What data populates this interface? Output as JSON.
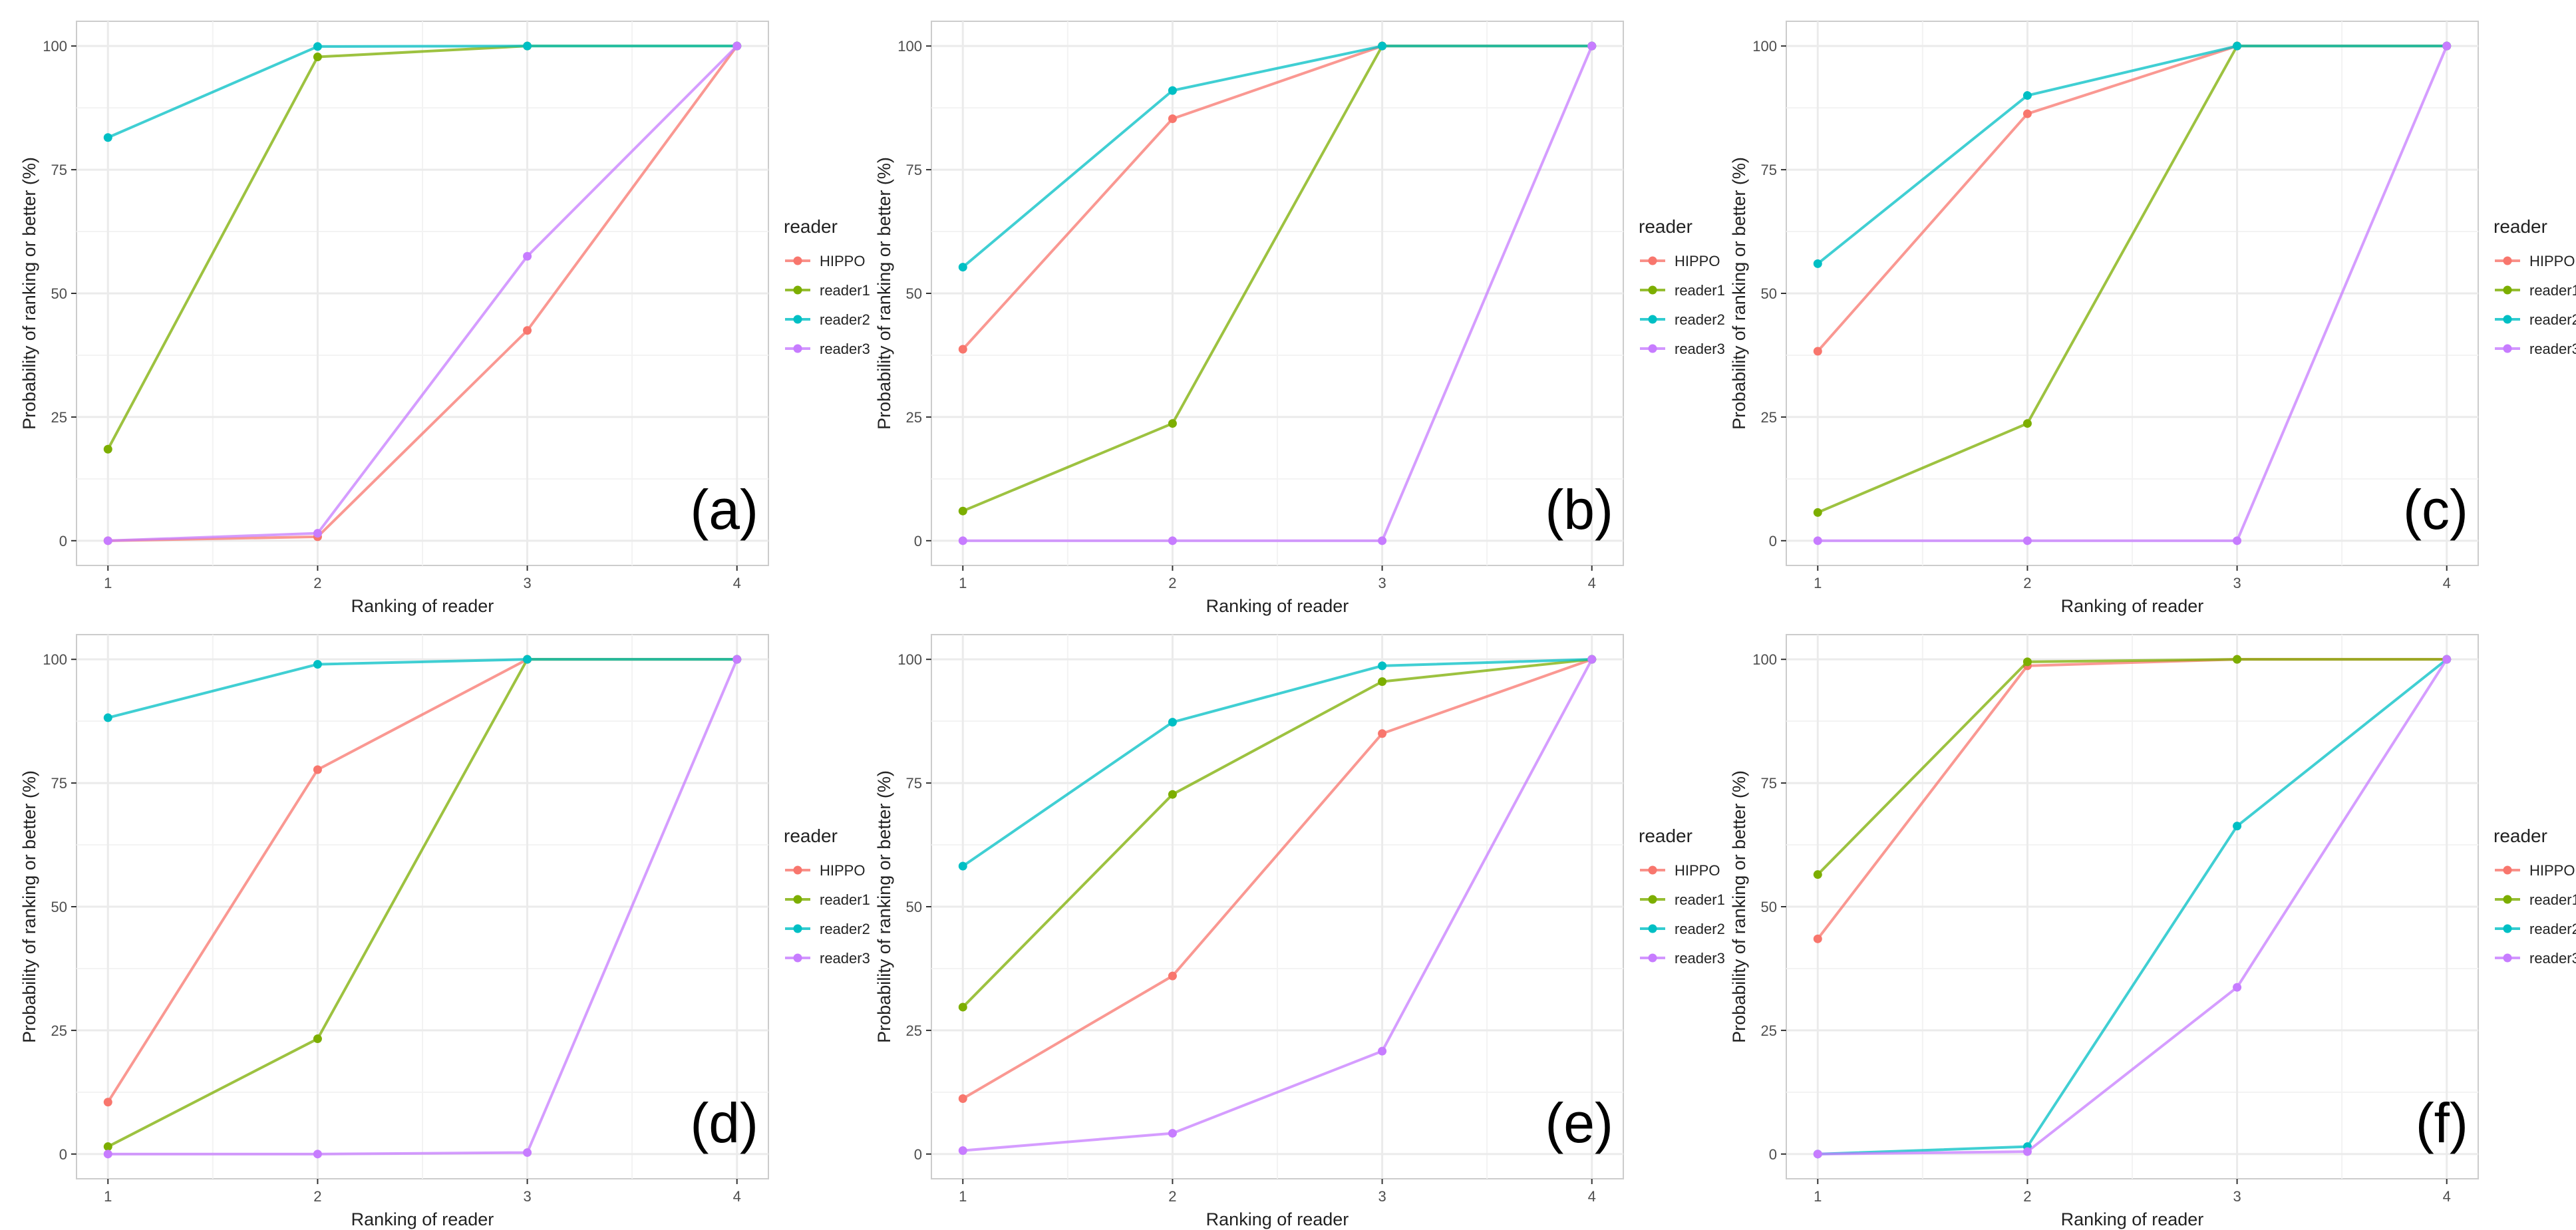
{
  "figure": {
    "legend_title": "reader",
    "colors": {
      "HIPPO": "#F8766D",
      "reader1": "#7CAE00",
      "reader2": "#00BFC4",
      "reader3": "#C77CFF",
      "grid": "#EBEBEB",
      "panel_border": "#CCCCCC",
      "text": "#222222",
      "tick_text": "#4D4D4D"
    }
  },
  "chart_data": [
    {
      "panel_label": "(a)",
      "type": "line",
      "xlabel": "Ranking of reader",
      "ylabel": "Probability of ranking or better (%)",
      "x": [
        1,
        2,
        3,
        4
      ],
      "xlim": [
        1,
        4
      ],
      "ylim": [
        0,
        100
      ],
      "x_ticks": [
        "1",
        "2",
        "3",
        "4"
      ],
      "y_ticks": [
        "0",
        "25",
        "50",
        "75",
        "100"
      ],
      "series": [
        {
          "name": "HIPPO",
          "values": [
            0,
            0.8,
            42.5,
            100
          ]
        },
        {
          "name": "reader1",
          "values": [
            18.5,
            97.8,
            100,
            100
          ]
        },
        {
          "name": "reader2",
          "values": [
            81.5,
            99.9,
            100,
            100
          ]
        },
        {
          "name": "reader3",
          "values": [
            0,
            1.5,
            57.5,
            100
          ]
        }
      ]
    },
    {
      "panel_label": "(b)",
      "type": "line",
      "xlabel": "Ranking of reader",
      "ylabel": "Probability of ranking or better (%)",
      "x": [
        1,
        2,
        3,
        4
      ],
      "xlim": [
        1,
        4
      ],
      "ylim": [
        0,
        100
      ],
      "x_ticks": [
        "1",
        "2",
        "3",
        "4"
      ],
      "y_ticks": [
        "0",
        "25",
        "50",
        "75",
        "100"
      ],
      "series": [
        {
          "name": "HIPPO",
          "values": [
            38.7,
            85.3,
            100,
            100
          ]
        },
        {
          "name": "reader1",
          "values": [
            6,
            23.7,
            100,
            100
          ]
        },
        {
          "name": "reader2",
          "values": [
            55.3,
            91,
            100,
            100
          ]
        },
        {
          "name": "reader3",
          "values": [
            0,
            0,
            0,
            100
          ]
        }
      ]
    },
    {
      "panel_label": "(c)",
      "type": "line",
      "xlabel": "Ranking of reader",
      "ylabel": "Probability of ranking or better (%)",
      "x": [
        1,
        2,
        3,
        4
      ],
      "xlim": [
        1,
        4
      ],
      "ylim": [
        0,
        100
      ],
      "x_ticks": [
        "1",
        "2",
        "3",
        "4"
      ],
      "y_ticks": [
        "0",
        "25",
        "50",
        "75",
        "100"
      ],
      "series": [
        {
          "name": "HIPPO",
          "values": [
            38.3,
            86.3,
            100,
            100
          ]
        },
        {
          "name": "reader1",
          "values": [
            5.7,
            23.7,
            100,
            100
          ]
        },
        {
          "name": "reader2",
          "values": [
            56,
            90,
            100,
            100
          ]
        },
        {
          "name": "reader3",
          "values": [
            0,
            0,
            0,
            100
          ]
        }
      ]
    },
    {
      "panel_label": "(d)",
      "type": "line",
      "xlabel": "Ranking of reader",
      "ylabel": "Probability of ranking or better (%)",
      "x": [
        1,
        2,
        3,
        4
      ],
      "xlim": [
        1,
        4
      ],
      "ylim": [
        0,
        100
      ],
      "x_ticks": [
        "1",
        "2",
        "3",
        "4"
      ],
      "y_ticks": [
        "0",
        "25",
        "50",
        "75",
        "100"
      ],
      "series": [
        {
          "name": "HIPPO",
          "values": [
            10.5,
            77.7,
            100,
            100
          ]
        },
        {
          "name": "reader1",
          "values": [
            1.5,
            23.3,
            100,
            100
          ]
        },
        {
          "name": "reader2",
          "values": [
            88.2,
            99,
            100,
            100
          ]
        },
        {
          "name": "reader3",
          "values": [
            0,
            0,
            0.3,
            100
          ]
        }
      ]
    },
    {
      "panel_label": "(e)",
      "type": "line",
      "xlabel": "Ranking of reader",
      "ylabel": "Probability of ranking or better (%)",
      "x": [
        1,
        2,
        3,
        4
      ],
      "xlim": [
        1,
        4
      ],
      "ylim": [
        0,
        100
      ],
      "x_ticks": [
        "1",
        "2",
        "3",
        "4"
      ],
      "y_ticks": [
        "0",
        "25",
        "50",
        "75",
        "100"
      ],
      "series": [
        {
          "name": "HIPPO",
          "values": [
            11.2,
            36,
            85,
            100
          ]
        },
        {
          "name": "reader1",
          "values": [
            29.7,
            72.7,
            95.5,
            100
          ]
        },
        {
          "name": "reader2",
          "values": [
            58.2,
            87.3,
            98.7,
            100
          ]
        },
        {
          "name": "reader3",
          "values": [
            0.7,
            4.2,
            20.8,
            100
          ]
        }
      ]
    },
    {
      "panel_label": "(f)",
      "type": "line",
      "xlabel": "Ranking of reader",
      "ylabel": "Probability of ranking or better (%)",
      "x": [
        1,
        2,
        3,
        4
      ],
      "xlim": [
        1,
        4
      ],
      "ylim": [
        0,
        100
      ],
      "x_ticks": [
        "1",
        "2",
        "3",
        "4"
      ],
      "y_ticks": [
        "0",
        "25",
        "50",
        "75",
        "100"
      ],
      "series": [
        {
          "name": "HIPPO",
          "values": [
            43.5,
            98.7,
            100,
            100
          ]
        },
        {
          "name": "reader1",
          "values": [
            56.5,
            99.5,
            100,
            100
          ]
        },
        {
          "name": "reader2",
          "values": [
            0,
            1.5,
            66.3,
            100
          ]
        },
        {
          "name": "reader3",
          "values": [
            0,
            0.5,
            33.7,
            100
          ]
        }
      ]
    }
  ]
}
